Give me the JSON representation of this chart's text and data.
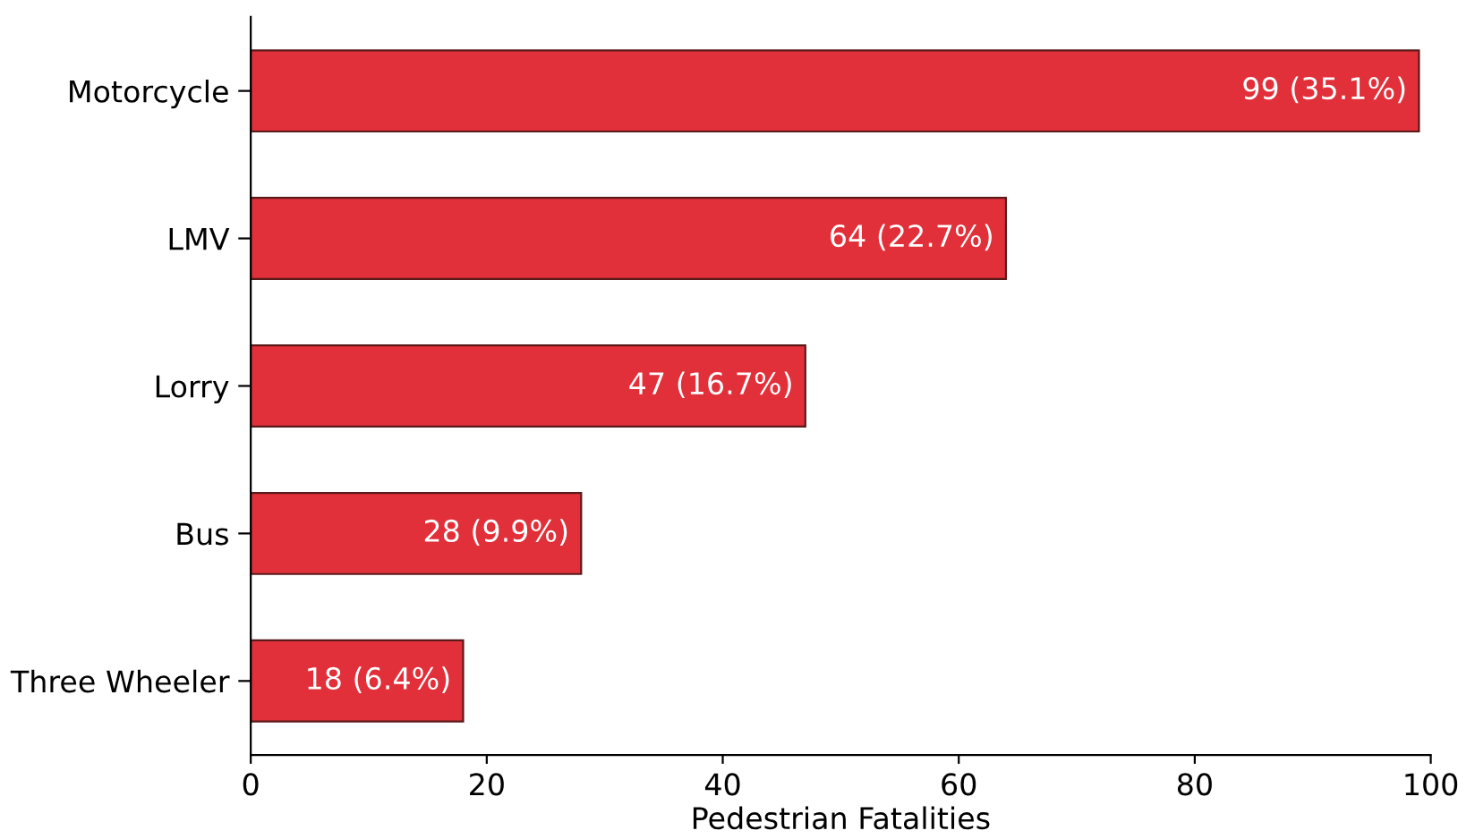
{
  "chart_data": {
    "type": "bar",
    "orientation": "horizontal",
    "xlabel": "Pedestrian Fatalities",
    "categories": [
      "Motorcycle",
      "LMV",
      "Lorry",
      "Bus",
      "Three Wheeler"
    ],
    "values": [
      99,
      64,
      47,
      28,
      18
    ],
    "value_labels": [
      "99 (35.1%)",
      "64 (22.7%)",
      "47 (16.7%)",
      "28 (9.9%)",
      "18 (6.4%)"
    ],
    "color": "#e2303a",
    "xlim": [
      0,
      100
    ],
    "xticks": [
      0,
      20,
      40,
      60,
      80,
      100
    ],
    "grid": false,
    "legend": false
  }
}
